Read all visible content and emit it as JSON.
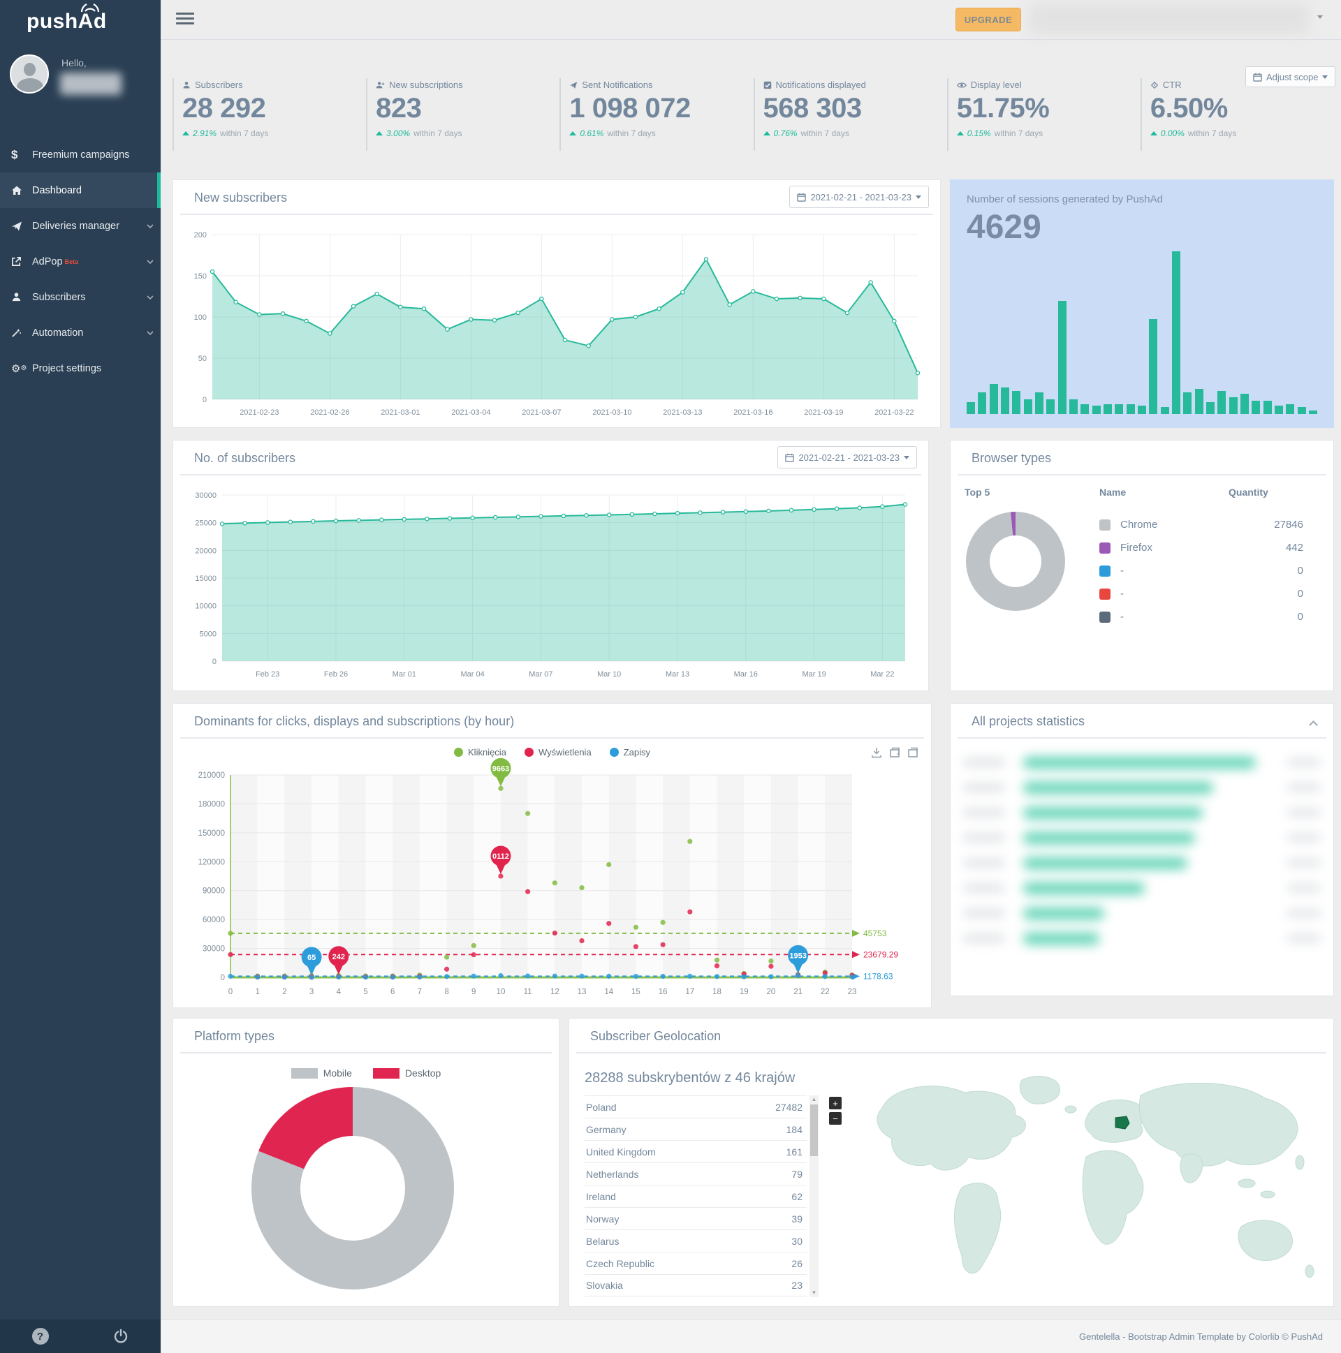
{
  "app": {
    "logo": "pushAd",
    "footer_text": "Gentelella - Bootstrap Admin Template by",
    "footer_link": "Colorlib",
    "footer_copyright": "© PushAd"
  },
  "topbar": {
    "upgrade": "UPGRADE"
  },
  "sidebar": {
    "greeting": "Hello,",
    "items": [
      {
        "label": "Freemium campaigns"
      },
      {
        "label": "Dashboard"
      },
      {
        "label": "Deliveries manager"
      },
      {
        "label": "AdPop",
        "badge": "Beta"
      },
      {
        "label": "Subscribers"
      },
      {
        "label": "Automation"
      },
      {
        "label": "Project settings"
      }
    ]
  },
  "stats": {
    "adjust_scope": "Adjust scope",
    "items": [
      {
        "label": "Subscribers",
        "value": "28 292",
        "change": "2.91%",
        "note": "within 7 days"
      },
      {
        "label": "New subscriptions",
        "value": "823",
        "change": "3.00%",
        "note": "within 7 days"
      },
      {
        "label": "Sent Notifications",
        "value": "1 098 072",
        "change": "0.61%",
        "note": "within 7 days"
      },
      {
        "label": "Notifications displayed",
        "value": "568 303",
        "change": "0.76%",
        "note": "within 7 days"
      },
      {
        "label": "Display level",
        "value": "51.75%",
        "change": "0.15%",
        "note": "within 7 days"
      },
      {
        "label": "CTR",
        "value": "6.50%",
        "change": "0.00%",
        "note": "within 7 days"
      }
    ]
  },
  "panels": {
    "new_subscribers": {
      "title": "New subscribers",
      "date_range": "2021-02-21 - 2021-03-23"
    },
    "sessions": {
      "title": "Number of sessions generated by PushAd",
      "value": "4629"
    },
    "subscribers_total": {
      "title": "No. of subscribers",
      "date_range": "2021-02-21 - 2021-03-23"
    },
    "browsers": {
      "title": "Browser types",
      "top_label": "Top 5",
      "col_name": "Name",
      "col_quantity": "Quantity",
      "rows": [
        {
          "name": "Chrome",
          "quantity": "27846"
        },
        {
          "name": "Firefox",
          "quantity": "442"
        },
        {
          "name": "-",
          "quantity": "0"
        },
        {
          "name": "-",
          "quantity": "0"
        },
        {
          "name": "-",
          "quantity": "0"
        }
      ]
    },
    "dominants": {
      "title": "Dominants for clicks, displays and subscriptions (by hour)",
      "legend": [
        "Kliknięcia",
        "Wyświetlenia",
        "Zapisy"
      ]
    },
    "projects": {
      "title": "All projects statistics"
    },
    "platforms": {
      "title": "Platform types",
      "legend": [
        "Mobile",
        "Desktop"
      ]
    },
    "geo": {
      "title": "Subscriber Geolocation",
      "header": "28288 subskrybentów z 46 krajów",
      "countries": [
        [
          "Poland",
          "27482"
        ],
        [
          "Germany",
          "184"
        ],
        [
          "United Kingdom",
          "161"
        ],
        [
          "Netherlands",
          "79"
        ],
        [
          "Ireland",
          "62"
        ],
        [
          "Norway",
          "39"
        ],
        [
          "Belarus",
          "30"
        ],
        [
          "Czech Republic",
          "26"
        ],
        [
          "Slovakia",
          "23"
        ]
      ]
    }
  },
  "colors": {
    "accent": "#26B99A",
    "green_change": "#1ABB9C",
    "sessions_card_bg": "#CBDCF7",
    "clicks": "#82BB41",
    "displays": "#E0244E",
    "signups": "#2D9CDB",
    "upgrade": "#F5B963",
    "map_land": "#D5E8E1",
    "map_highlight": "#17764A",
    "sidebar_bg": "#2A3F54",
    "adpop_badge": "#E74C3C"
  },
  "chart_data": [
    {
      "id": "new_subscribers",
      "type": "area",
      "title": "New subscribers",
      "x_labels": [
        "2021-02-23",
        "2021-02-26",
        "2021-03-01",
        "2021-03-04",
        "2021-03-07",
        "2021-03-10",
        "2021-03-13",
        "2021-03-16",
        "2021-03-19",
        "2021-03-22"
      ],
      "label_indices": [
        2,
        5,
        8,
        11,
        14,
        17,
        20,
        23,
        26,
        29
      ],
      "values": [
        155,
        118,
        103,
        104,
        95,
        80,
        113,
        128,
        112,
        110,
        85,
        97,
        96,
        105,
        122,
        72,
        65,
        97,
        100,
        110,
        130,
        170,
        115,
        131,
        122,
        123,
        122,
        105,
        142,
        95,
        32
      ],
      "ylim": [
        0,
        200
      ],
      "yticks": [
        0,
        50,
        100,
        150,
        200
      ],
      "color": "#26B99A"
    },
    {
      "id": "sessions",
      "type": "bar",
      "title": "Number of sessions generated by PushAd",
      "total": 4629,
      "unit": "relative-height-percent",
      "values": [
        7,
        13,
        18,
        16,
        14,
        9,
        13,
        9,
        68,
        9,
        6,
        5,
        6,
        6,
        6,
        5,
        57,
        4,
        98,
        13,
        15,
        7,
        14,
        10,
        12,
        8,
        8,
        5,
        6,
        4,
        2
      ],
      "color": "#26B99A"
    },
    {
      "id": "subscribers_total",
      "type": "area",
      "title": "No. of subscribers",
      "x_labels": [
        "Feb 23",
        "Feb 26",
        "Mar 01",
        "Mar 04",
        "Mar 07",
        "Mar 10",
        "Mar 13",
        "Mar 16",
        "Mar 19",
        "Mar 22"
      ],
      "label_indices": [
        2,
        5,
        8,
        11,
        14,
        17,
        20,
        23,
        26,
        29
      ],
      "values": [
        24800,
        24920,
        25030,
        25130,
        25230,
        25330,
        25420,
        25510,
        25600,
        25690,
        25780,
        25870,
        25960,
        26050,
        26140,
        26230,
        26320,
        26410,
        26500,
        26600,
        26700,
        26800,
        26900,
        27000,
        27120,
        27250,
        27380,
        27520,
        27680,
        27900,
        28292
      ],
      "ylim": [
        0,
        30000
      ],
      "yticks": [
        0,
        5000,
        10000,
        15000,
        20000,
        25000,
        30000
      ],
      "color": "#26B99A"
    },
    {
      "id": "browsers",
      "type": "pie",
      "donut": true,
      "title": "Browser types",
      "labels": [
        "Chrome",
        "Firefox",
        "-",
        "-",
        "-"
      ],
      "values": [
        27846,
        442,
        0,
        0,
        0
      ],
      "colors": [
        "#BDC3C7",
        "#9B59B6",
        "#2D9CDB",
        "#E8463F",
        "#5C6B7A"
      ]
    },
    {
      "id": "dominants",
      "type": "scatter",
      "title": "Dominants for clicks, displays and subscriptions (by hour)",
      "x": [
        0,
        1,
        2,
        3,
        4,
        5,
        6,
        7,
        8,
        9,
        10,
        11,
        12,
        13,
        14,
        15,
        16,
        17,
        18,
        19,
        20,
        21,
        22,
        23
      ],
      "ylim": [
        0,
        210000
      ],
      "yticks": [
        0,
        30000,
        60000,
        90000,
        120000,
        150000,
        180000,
        210000
      ],
      "series": [
        {
          "name": "Kliknięcia",
          "color": "#82BB41",
          "values": [
            45753,
            1500,
            1500,
            2000,
            2000,
            1500,
            1500,
            2500,
            21000,
            33000,
            196000,
            170000,
            98000,
            93000,
            117000,
            52000,
            57000,
            141000,
            18000,
            4000,
            17000,
            3000,
            5500,
            2500
          ]
        },
        {
          "name": "Wyświetlenia",
          "color": "#E0244E",
          "values": [
            23679,
            700,
            700,
            900,
            900,
            700,
            800,
            1200,
            8500,
            23500,
            105000,
            89000,
            46000,
            38000,
            56000,
            32000,
            34000,
            68000,
            12000,
            3500,
            11500,
            2500,
            4500,
            2000
          ]
        },
        {
          "name": "Zapisy",
          "color": "#2D9CDB",
          "values": [
            1179,
            300,
            300,
            65,
            400,
            300,
            300,
            400,
            900,
            1300,
            1800,
            1500,
            1400,
            1300,
            1200,
            1100,
            1100,
            1200,
            900,
            700,
            800,
            1953,
            900,
            600
          ]
        }
      ],
      "avg_lines": [
        {
          "series": "Kliknięcia",
          "value": 45753,
          "label": "45753",
          "color": "#82BB41"
        },
        {
          "series": "Wyświetlenia",
          "value": 23679.29,
          "label": "23679.29",
          "color": "#E0244E"
        },
        {
          "series": "Zapisy",
          "value": 1178.63,
          "label": "1178.63",
          "color": "#2D9CDB"
        }
      ],
      "pins": [
        {
          "series": 0,
          "hour": 10,
          "label": "9663"
        },
        {
          "series": 1,
          "hour": 10,
          "label": "0112"
        },
        {
          "series": 2,
          "hour": 3,
          "label": "65"
        },
        {
          "series": 1,
          "hour": 4,
          "label": "242"
        },
        {
          "series": 2,
          "hour": 21,
          "label": "1953"
        }
      ]
    },
    {
      "id": "platforms",
      "type": "pie",
      "donut": true,
      "title": "Platform types",
      "labels": [
        "Mobile",
        "Desktop"
      ],
      "values_percent": [
        81,
        19
      ],
      "colors": [
        "#BDC3C7",
        "#E02650"
      ]
    }
  ]
}
